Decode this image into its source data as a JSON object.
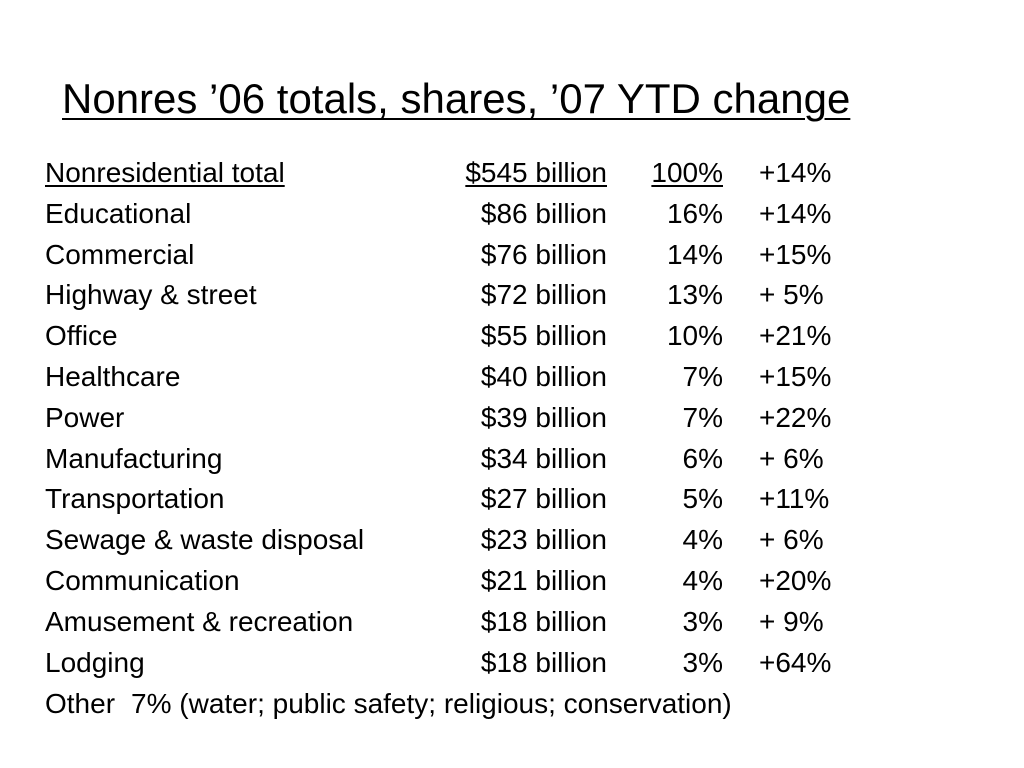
{
  "title": "Nonres ’06 totals, shares, ’07 YTD change",
  "header": {
    "category": "Nonresidential total",
    "amount": "$545 billion",
    "share": "100%",
    "change": "+14%"
  },
  "rows": [
    {
      "category": "Educational",
      "amount": "$86 billion",
      "share": "16%",
      "change": "+14%"
    },
    {
      "category": "Commercial",
      "amount": "$76 billion",
      "share": "14%",
      "change": "+15%"
    },
    {
      "category": "Highway & street",
      "amount": "$72 billion",
      "share": "13%",
      "change": "+  5%"
    },
    {
      "category": "Office",
      "amount": "$55 billion",
      "share": "10%",
      "change": "+21%"
    },
    {
      "category": "Healthcare",
      "amount": "$40 billion",
      "share": "7%",
      "change": "+15%"
    },
    {
      "category": "Power",
      "amount": "$39 billion",
      "share": "7%",
      "change": "+22%"
    },
    {
      "category": "Manufacturing",
      "amount": "$34 billion",
      "share": "6%",
      "change": "+  6%"
    },
    {
      "category": "Transportation",
      "amount": "$27 billion",
      "share": "5%",
      "change": "+11%"
    },
    {
      "category": "Sewage & waste disposal",
      "amount": "$23 billion",
      "share": "4%",
      "change": "+  6%"
    },
    {
      "category": "Communication",
      "amount": "$21 billion",
      "share": "4%",
      "change": "+20%"
    },
    {
      "category": "Amusement & recreation",
      "amount": "$18 billion",
      "share": "3%",
      "change": "+  9%"
    },
    {
      "category": "Lodging",
      "amount": "$18 billion",
      "share": "3%",
      "change": "+64%"
    }
  ],
  "footer": {
    "label": "Other",
    "text": "7% (water; public safety; religious; conservation)"
  }
}
